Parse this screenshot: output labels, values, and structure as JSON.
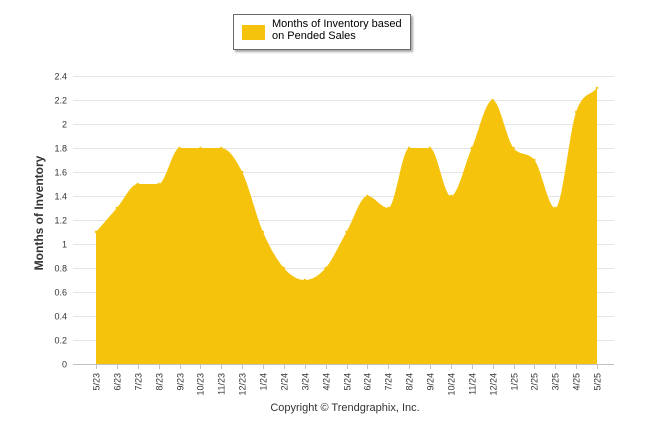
{
  "chart_data": {
    "type": "area",
    "title": "",
    "xlabel": "",
    "ylabel": "Months of Inventory",
    "ylim": [
      0,
      2.4
    ],
    "ytick_step": 0.2,
    "yticks": [
      "0",
      "0.2",
      "0.4",
      "0.6",
      "0.8",
      "1",
      "1.2",
      "1.4",
      "1.6",
      "1.8",
      "2",
      "2.2",
      "2.4"
    ],
    "grid": true,
    "legend_position": "top-center",
    "categories": [
      "5/23",
      "6/23",
      "7/23",
      "8/23",
      "9/23",
      "10/23",
      "11/23",
      "12/23",
      "1/24",
      "2/24",
      "3/24",
      "4/24",
      "5/24",
      "6/24",
      "7/24",
      "8/24",
      "9/24",
      "10/24",
      "11/24",
      "12/24",
      "1/25",
      "2/25",
      "3/25",
      "4/25",
      "5/25"
    ],
    "series": [
      {
        "name": "Months of Inventory based on Pended Sales",
        "color": "#f6c30c",
        "values": [
          1.1,
          1.3,
          1.5,
          1.5,
          1.8,
          1.8,
          1.8,
          1.6,
          1.1,
          0.8,
          0.7,
          0.8,
          1.1,
          1.4,
          1.3,
          1.8,
          1.8,
          1.4,
          1.8,
          2.2,
          1.8,
          1.7,
          1.3,
          2.1,
          2.3
        ]
      }
    ]
  },
  "footer": {
    "copyright": "Copyright © Trendgraphix, Inc."
  }
}
